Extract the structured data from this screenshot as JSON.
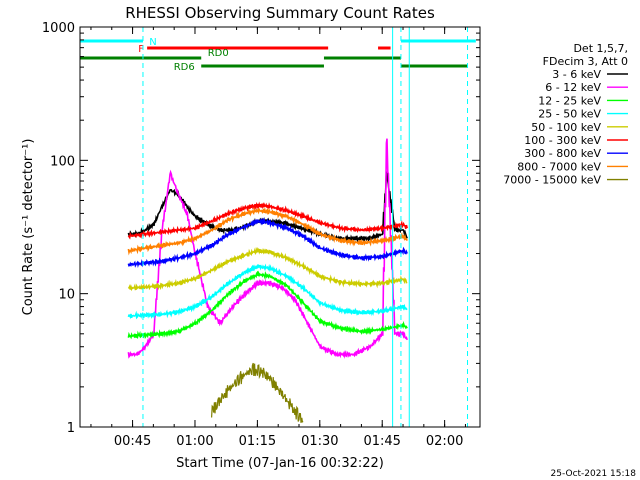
{
  "chart_data": {
    "type": "line",
    "title": "RHESSI Observing Summary Count Rates",
    "xlabel": "Start Time (07-Jan-16 00:32:22)",
    "ylabel": "Count Rate (s⁻¹ detector⁻¹)",
    "y_scale": "log",
    "ylim": [
      1,
      1000
    ],
    "xlim": [
      "00:32:22",
      "02:08:30"
    ],
    "x_ticks": [
      "00:45",
      "01:00",
      "01:15",
      "01:30",
      "01:45",
      "02:00"
    ],
    "y_ticks": [
      "1",
      "10",
      "100",
      "1000"
    ],
    "legend_header": [
      "Det 1,5,7,",
      "FDecim 3, Att 0"
    ],
    "legend_position": "right",
    "series": [
      {
        "name": "3 - 6 keV",
        "color": "#000000",
        "x": [
          "00:44",
          "00:46",
          "00:48",
          "00:50",
          "00:52",
          "00:54",
          "00:56",
          "00:58",
          "01:00",
          "01:03",
          "01:06",
          "01:09",
          "01:12",
          "01:15",
          "01:18",
          "01:21",
          "01:24",
          "01:27",
          "01:30",
          "01:34",
          "01:38",
          "01:42",
          "01:45",
          "01:46",
          "01:48",
          "01:50",
          "01:51"
        ],
        "y": [
          28,
          28,
          30,
          33,
          45,
          60,
          55,
          45,
          38,
          33,
          30,
          30,
          32,
          35,
          35,
          34,
          32,
          30,
          28,
          26,
          26,
          26,
          28,
          80,
          30,
          30,
          26
        ]
      },
      {
        "name": "6 - 12 keV",
        "color": "#ff00ff",
        "x": [
          "00:44",
          "00:46",
          "00:48",
          "00:50",
          "00:52",
          "00:54",
          "00:56",
          "00:58",
          "01:00",
          "01:03",
          "01:06",
          "01:09",
          "01:12",
          "01:15",
          "01:18",
          "01:21",
          "01:24",
          "01:27",
          "01:30",
          "01:34",
          "01:38",
          "01:42",
          "01:45",
          "01:46",
          "01:48",
          "01:50",
          "01:51"
        ],
        "y": [
          3.5,
          3.5,
          4,
          5,
          30,
          80,
          55,
          40,
          20,
          8,
          6,
          8,
          10,
          12,
          12,
          11,
          9,
          6,
          4,
          3.5,
          3.5,
          4,
          5,
          140,
          5,
          5,
          4.5
        ]
      },
      {
        "name": "12 - 25 keV",
        "color": "#00ff00",
        "x": [
          "00:44",
          "00:48",
          "00:52",
          "00:56",
          "01:00",
          "01:04",
          "01:08",
          "01:12",
          "01:15",
          "01:18",
          "01:22",
          "01:26",
          "01:30",
          "01:35",
          "01:40",
          "01:45",
          "01:50",
          "01:51"
        ],
        "y": [
          4.8,
          4.9,
          5,
          5.2,
          6,
          7.5,
          10,
          12.5,
          14,
          13.5,
          11.5,
          8.5,
          6.2,
          5.5,
          5.2,
          5.4,
          5.8,
          5.5
        ]
      },
      {
        "name": "25 - 50 keV",
        "color": "#00ffff",
        "x": [
          "00:44",
          "00:48",
          "00:52",
          "00:56",
          "01:00",
          "01:04",
          "01:08",
          "01:12",
          "01:15",
          "01:18",
          "01:22",
          "01:26",
          "01:30",
          "01:35",
          "01:40",
          "01:45",
          "01:50",
          "01:51"
        ],
        "y": [
          6.8,
          6.9,
          7,
          7.3,
          8,
          9.5,
          12,
          14.5,
          16,
          15.5,
          13.5,
          11,
          8.5,
          7.5,
          7.2,
          7.4,
          8,
          7.6
        ]
      },
      {
        "name": "50 - 100 keV",
        "color": "#cccc00",
        "x": [
          "00:44",
          "00:48",
          "00:52",
          "00:56",
          "01:00",
          "01:04",
          "01:08",
          "01:12",
          "01:15",
          "01:18",
          "01:22",
          "01:26",
          "01:30",
          "01:35",
          "01:40",
          "01:45",
          "01:50",
          "01:51"
        ],
        "y": [
          11,
          11.2,
          11.5,
          12,
          13,
          15,
          17.5,
          19.5,
          21,
          20.5,
          18.5,
          16,
          13.5,
          12.2,
          11.8,
          12,
          12.8,
          12.2
        ]
      },
      {
        "name": "100 - 300 keV",
        "color": "#ff0000",
        "x": [
          "00:44",
          "00:48",
          "00:52",
          "00:56",
          "01:00",
          "01:04",
          "01:08",
          "01:12",
          "01:15",
          "01:18",
          "01:22",
          "01:26",
          "01:30",
          "01:35",
          "01:40",
          "01:45",
          "01:50",
          "01:51"
        ],
        "y": [
          27,
          28,
          29,
          30,
          31,
          35,
          40,
          44,
          46,
          45,
          42,
          38,
          34,
          31,
          30,
          31,
          33,
          31
        ]
      },
      {
        "name": "300 - 800 keV",
        "color": "#0000ff",
        "x": [
          "00:44",
          "00:48",
          "00:52",
          "00:56",
          "01:00",
          "01:04",
          "01:08",
          "01:12",
          "01:15",
          "01:18",
          "01:22",
          "01:26",
          "01:30",
          "01:35",
          "01:40",
          "01:45",
          "01:50",
          "01:51"
        ],
        "y": [
          16.5,
          17,
          17.5,
          18.5,
          20,
          23,
          28,
          32,
          35,
          34,
          31,
          27,
          22,
          19.5,
          18.5,
          19,
          21,
          20
        ]
      },
      {
        "name": "800 - 7000 keV",
        "color": "#ff8000",
        "x": [
          "00:44",
          "00:48",
          "00:52",
          "00:56",
          "01:00",
          "01:04",
          "01:08",
          "01:12",
          "01:15",
          "01:18",
          "01:22",
          "01:26",
          "01:30",
          "01:35",
          "01:40",
          "01:45",
          "01:50",
          "01:51"
        ],
        "y": [
          21,
          22,
          23,
          24,
          26,
          30,
          36,
          40,
          42,
          41,
          38,
          33,
          28,
          25,
          24,
          25,
          27,
          25
        ]
      },
      {
        "name": "7000 - 15000 keV",
        "color": "#808000",
        "x": [
          "01:04",
          "01:06",
          "01:08",
          "01:10",
          "01:12",
          "01:14",
          "01:16",
          "01:18",
          "01:20",
          "01:22",
          "01:24",
          "01:26"
        ],
        "y": [
          1.3,
          1.6,
          1.9,
          2.2,
          2.5,
          2.7,
          2.6,
          2.3,
          1.9,
          1.6,
          1.3,
          1.1
        ]
      }
    ],
    "annotations": {
      "footer_date": "25-Oct-2021 15:18",
      "bars": [
        {
          "label": "N",
          "color": "#00ffff",
          "segments": [
            [
              "00:32:22",
              "00:47:30"
            ],
            [
              "01:49:30",
              "02:07:30"
            ]
          ]
        },
        {
          "label": "F",
          "color": "#ff0000",
          "segments": [
            [
              "00:48:30",
              "01:32:00"
            ],
            [
              "01:44:00",
              "01:47:00"
            ]
          ]
        },
        {
          "label": "RD0",
          "color": "#008000",
          "segments": [
            [
              "00:32:22",
              "01:01:30"
            ],
            [
              "01:31:00",
              "01:49:30"
            ]
          ]
        },
        {
          "label": "RD6",
          "color": "#008000",
          "segments": [
            [
              "01:01:30",
              "01:31:00"
            ],
            [
              "01:49:30",
              "02:05:30"
            ]
          ]
        }
      ],
      "vlines": [
        {
          "time": "00:32:22",
          "color": "#00ffff",
          "style": "solid"
        },
        {
          "time": "00:47:30",
          "color": "#00ffff",
          "style": "dashed"
        },
        {
          "time": "01:47:30",
          "color": "#00ffff",
          "style": "solid"
        },
        {
          "time": "01:49:30",
          "color": "#00ffff",
          "style": "dashed"
        },
        {
          "time": "01:51:30",
          "color": "#00ffff",
          "style": "solid"
        },
        {
          "time": "02:05:30",
          "color": "#00ffff",
          "style": "dashed"
        }
      ]
    }
  }
}
